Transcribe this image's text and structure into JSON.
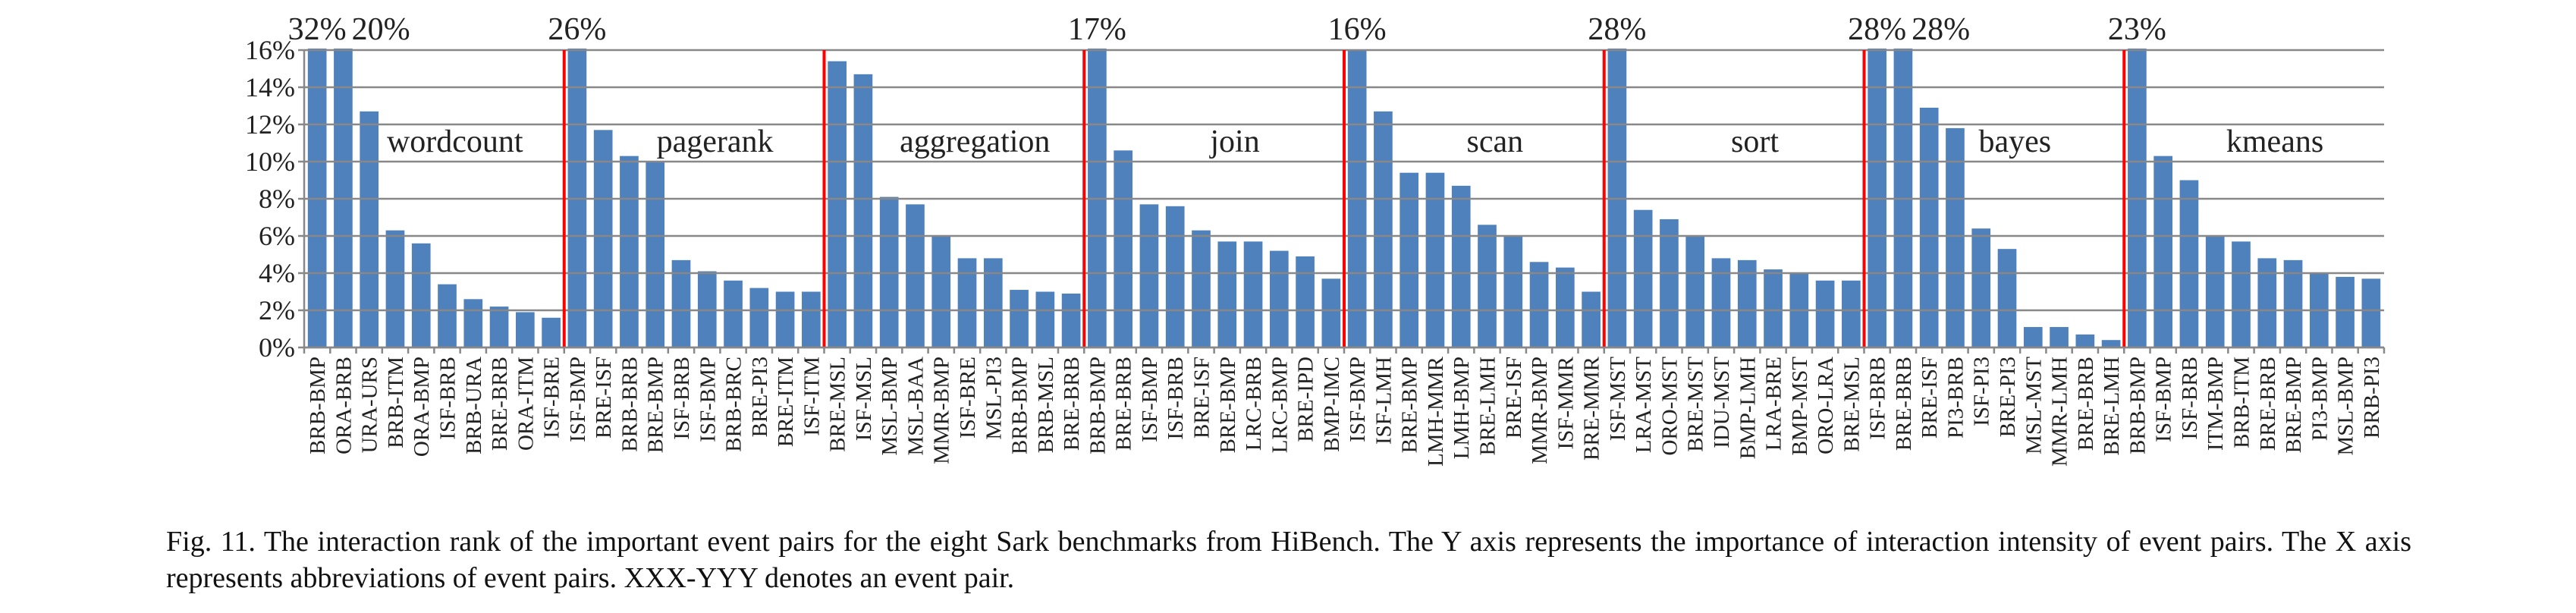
{
  "chart_data": {
    "type": "bar",
    "color": "#4f81bd",
    "separator_color": "#ff0000",
    "ylim": [
      0,
      16
    ],
    "yticks": [
      {
        "value": 0,
        "label": "0%"
      },
      {
        "value": 2,
        "label": "2%"
      },
      {
        "value": 4,
        "label": "4%"
      },
      {
        "value": 6,
        "label": "6%"
      },
      {
        "value": 8,
        "label": "8%"
      },
      {
        "value": 10,
        "label": "10%"
      },
      {
        "value": 12,
        "label": "12%"
      },
      {
        "value": 14,
        "label": "14%"
      },
      {
        "value": 16,
        "label": "16%"
      }
    ],
    "grid": true,
    "groups": [
      {
        "name": "wordcount",
        "categories": [
          "BRB-BMP",
          "ORA-BRB",
          "URA-URS",
          "BRB-ITM",
          "ORA-BMP",
          "ISF-BRB",
          "BRB-URA",
          "BRE-BRB",
          "ORA-ITM",
          "ISF-BRE"
        ],
        "values": [
          32,
          20,
          12.7,
          6.3,
          5.6,
          3.4,
          2.6,
          2.2,
          1.9,
          1.6
        ],
        "value_labels": [
          "32%",
          "20%",
          null,
          null,
          null,
          null,
          null,
          null,
          null,
          null
        ]
      },
      {
        "name": "pagerank",
        "categories": [
          "ISF-BMP",
          "BRE-ISF",
          "BRB-BRB",
          "BRE-BMP",
          "ISF-BRB",
          "ISF-BMP",
          "BRB-BRC",
          "BRE-PI3",
          "BRE-ITM",
          "ISF-ITM"
        ],
        "values": [
          26,
          11.7,
          10.3,
          10.0,
          4.7,
          4.1,
          3.6,
          3.2,
          3.0,
          3.0
        ],
        "value_labels": [
          "26%",
          null,
          null,
          null,
          null,
          null,
          null,
          null,
          null,
          null
        ]
      },
      {
        "name": "aggregation",
        "categories": [
          "BRE-MSL",
          "ISF-MSL",
          "MSL-BMP",
          "MSL-BAA",
          "MMR-BMP",
          "ISF-BRE",
          "MSL-PI3",
          "BRB-BMP",
          "BRB-MSL",
          "BRE-BRB"
        ],
        "values": [
          15.4,
          14.7,
          8.1,
          7.7,
          6.0,
          4.8,
          4.8,
          3.1,
          3.0,
          2.9
        ],
        "value_labels": [
          null,
          null,
          null,
          null,
          null,
          null,
          null,
          null,
          null,
          null
        ]
      },
      {
        "name": "join",
        "categories": [
          "BRB-BMP",
          "BRE-BRB",
          "ISF-BMP",
          "ISF-BRB",
          "BRE-ISF",
          "BRE-BMP",
          "LRC-BRB",
          "LRC-BMP",
          "BRE-IPD",
          "BMP-IMC"
        ],
        "values": [
          17,
          10.6,
          7.7,
          7.6,
          6.3,
          5.7,
          5.7,
          5.2,
          4.9,
          3.7
        ],
        "value_labels": [
          "17%",
          null,
          null,
          null,
          null,
          null,
          null,
          null,
          null,
          null
        ]
      },
      {
        "name": "scan",
        "categories": [
          "ISF-BMP",
          "ISF-LMH",
          "BRE-BMP",
          "LMH-MMR",
          "LMH-BMP",
          "BRE-LMH",
          "BRE-ISF",
          "MMR-BMP",
          "ISF-MMR",
          "BRE-MMR"
        ],
        "values": [
          16,
          12.7,
          9.4,
          9.4,
          8.7,
          6.6,
          6.0,
          4.6,
          4.3,
          3.0
        ],
        "value_labels": [
          "16%",
          null,
          null,
          null,
          null,
          null,
          null,
          null,
          null,
          null
        ]
      },
      {
        "name": "sort",
        "categories": [
          "ISF-MST",
          "LRA-MST",
          "ORO-MST",
          "BRE-MST",
          "IDU-MST",
          "BMP-LMH",
          "LRA-BRE",
          "BMP-MST",
          "ORO-LRA",
          "BRE-MSL"
        ],
        "values": [
          28,
          7.4,
          6.9,
          6.0,
          4.8,
          4.7,
          4.2,
          4.0,
          3.6,
          3.6
        ],
        "value_labels": [
          "28%",
          null,
          null,
          null,
          null,
          null,
          null,
          null,
          null,
          null
        ]
      },
      {
        "name": "bayes",
        "categories": [
          "ISF-BRB",
          "BRE-BRB",
          "BRE-ISF",
          "PI3-BRB",
          "ISF-PI3",
          "BRE-PI3",
          "MSL-MST",
          "MMR-LMH",
          "BRE-BRB",
          "BRE-LMH"
        ],
        "values": [
          28,
          28,
          12.9,
          11.8,
          6.4,
          5.3,
          1.1,
          1.1,
          0.7,
          0.4
        ],
        "value_labels": [
          "28%",
          "28%",
          null,
          null,
          null,
          null,
          null,
          null,
          null,
          null
        ]
      },
      {
        "name": "kmeans",
        "categories": [
          "BRB-BMP",
          "ISF-BMP",
          "ISF-BRB",
          "ITM-BMP",
          "BRB-ITM",
          "BRE-BRB",
          "BRE-BMP",
          "PI3-BMP",
          "MSL-BMP",
          "BRB-PI3"
        ],
        "values": [
          23,
          10.3,
          9.0,
          6.0,
          5.7,
          4.8,
          4.7,
          4.0,
          3.8,
          3.7
        ],
        "value_labels": [
          "23%",
          null,
          null,
          null,
          null,
          null,
          null,
          null,
          null,
          null
        ]
      }
    ],
    "caption": "Fig. 11.  The interaction rank of the important event pairs for the eight Sark benchmarks from HiBench. The Y axis represents the importance of interaction intensity of event pairs. The X axis represents abbreviations of event pairs. XXX-YYY denotes an event pair."
  }
}
